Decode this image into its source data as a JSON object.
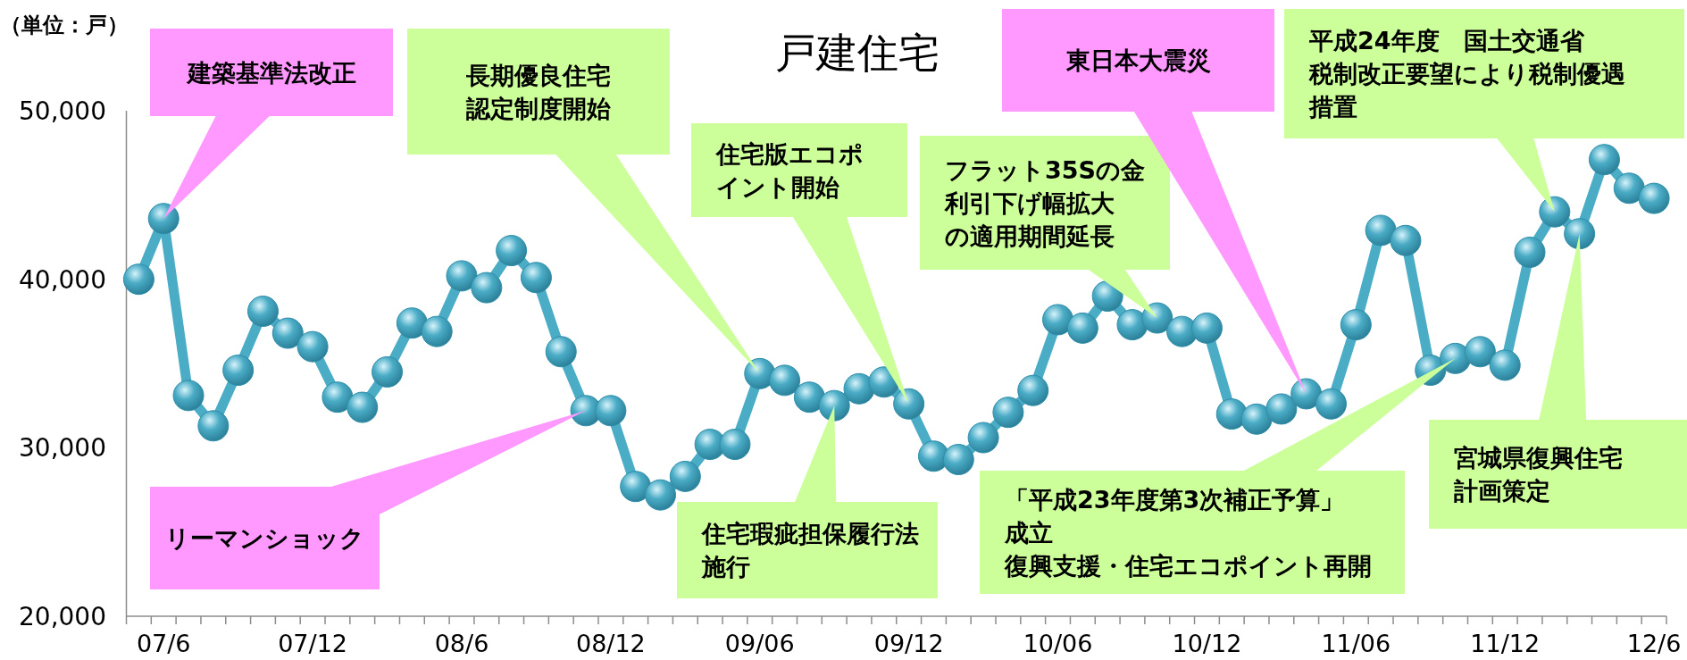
{
  "chart_data": {
    "type": "line",
    "title": "戸建住宅",
    "ylabel": "（単位：戸）",
    "categories": [
      null,
      "07/6",
      null,
      null,
      null,
      null,
      null,
      "07/12",
      null,
      null,
      null,
      null,
      null,
      "08/6",
      null,
      null,
      null,
      null,
      null,
      "08/12",
      null,
      null,
      null,
      null,
      null,
      "09/06",
      null,
      null,
      null,
      null,
      null,
      "09/12",
      null,
      null,
      null,
      null,
      null,
      "10/06",
      null,
      null,
      null,
      null,
      null,
      "10/12",
      null,
      null,
      null,
      null,
      null,
      "11/06",
      null,
      null,
      null,
      null,
      null,
      "11/12",
      null,
      null,
      null,
      null,
      null,
      "12/6"
    ],
    "series": [
      {
        "color": "#4bacc6",
        "values": [
          40000,
          43600,
          33100,
          31300,
          34600,
          38100,
          36800,
          36000,
          33000,
          32400,
          34500,
          37400,
          36900,
          40200,
          39500,
          41700,
          40100,
          35700,
          32200,
          32200,
          27700,
          27200,
          28300,
          30200,
          30200,
          34400,
          34000,
          33000,
          32500,
          33500,
          33900,
          32600,
          29500,
          29300,
          30600,
          32100,
          33400,
          37600,
          37100,
          39000,
          37300,
          37700,
          36900,
          37100,
          32000,
          31700,
          32300,
          33200,
          32600,
          37300,
          42900,
          42300,
          34600,
          35300,
          35700,
          34900,
          41600,
          44000,
          42700,
          47100,
          45400,
          44800
        ]
      }
    ],
    "ylim": [
      20000,
      50000
    ],
    "yticks": [
      {
        "value": 20000,
        "label": "20,000"
      },
      {
        "value": 30000,
        "label": "30,000"
      },
      {
        "value": 40000,
        "label": "40,000"
      },
      {
        "value": 50000,
        "label": "50,000"
      }
    ],
    "marker": "circle",
    "grid": false,
    "annotations": [
      "建築基準法改正",
      "リーマンショック",
      "長期優良住宅認定制度開始",
      "住宅版エコポイント開始",
      "住宅瑕疵担保履行法施行",
      "フラット35Sの金利引下げ幅拡大の適用期間延長",
      "東日本大震災",
      "「平成23年度第3次補正予算」成立復興支援・住宅エコポイント再開",
      "平成24年度　国土交通省税制改正要望により税制優遇措置",
      "宮城県復興住宅計画策定"
    ]
  }
}
